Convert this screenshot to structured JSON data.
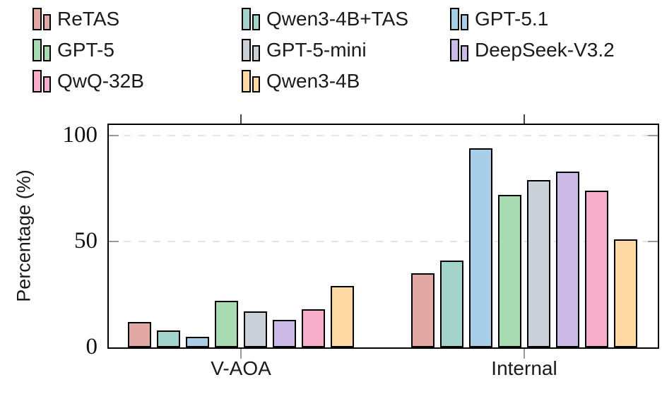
{
  "chart_data": {
    "type": "bar",
    "title": "",
    "xlabel": "",
    "ylabel": "Percentage (%)",
    "categories": [
      "V-AOA",
      "Internal"
    ],
    "ylim": [
      0,
      105
    ],
    "yticks": [
      0,
      50,
      100
    ],
    "gridlines": {
      "y": [
        50,
        100
      ],
      "style": "dashed",
      "color": "#e4e4e4"
    },
    "legend_position": "top",
    "legend_columns": 3,
    "legend_row_major_order": [
      "ReTAS",
      "Qwen3-4B+TAS",
      "GPT-5.1",
      "GPT-5",
      "GPT-5-mini",
      "DeepSeek-V3.2",
      "QwQ-32B",
      "Qwen3-4B"
    ],
    "bar_border_color": "#000000",
    "axis_color": "#000000",
    "series": [
      {
        "name": "ReTAS",
        "color": "#E2A9A4",
        "values": [
          12,
          35
        ]
      },
      {
        "name": "Qwen3-4B+TAS",
        "color": "#A3D4CC",
        "values": [
          8,
          41
        ]
      },
      {
        "name": "GPT-5.1",
        "color": "#A9CFE8",
        "values": [
          5,
          94
        ]
      },
      {
        "name": "GPT-5",
        "color": "#A8DBB1",
        "values": [
          22,
          72
        ]
      },
      {
        "name": "GPT-5-mini",
        "color": "#C9D0D7",
        "values": [
          17,
          79
        ]
      },
      {
        "name": "DeepSeek-V3.2",
        "color": "#CBB9E8",
        "values": [
          13,
          83
        ]
      },
      {
        "name": "QwQ-32B",
        "color": "#F6AECB",
        "values": [
          18,
          74
        ]
      },
      {
        "name": "Qwen3-4B",
        "color": "#FED9A3",
        "values": [
          29,
          51
        ]
      }
    ]
  }
}
